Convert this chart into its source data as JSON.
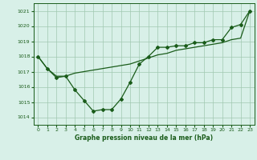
{
  "line_markers_x": [
    0,
    1,
    2,
    3,
    4,
    5,
    6,
    7,
    8,
    9,
    10,
    11,
    12,
    13,
    14,
    15,
    16,
    17,
    18,
    19,
    20,
    21,
    22,
    23
  ],
  "line_markers_y": [
    1018.0,
    1017.2,
    1016.6,
    1016.7,
    1015.8,
    1015.1,
    1014.4,
    1014.5,
    1014.5,
    1015.2,
    1016.3,
    1017.5,
    1018.0,
    1018.6,
    1018.6,
    1018.7,
    1018.7,
    1018.9,
    1018.9,
    1019.1,
    1019.1,
    1019.9,
    1020.1,
    1021.0
  ],
  "line_trend_x": [
    0,
    1,
    2,
    3,
    4,
    5,
    6,
    7,
    8,
    9,
    10,
    11,
    12,
    13,
    14,
    15,
    16,
    17,
    18,
    19,
    20,
    21,
    22,
    23
  ],
  "line_trend_y": [
    1018.0,
    1017.2,
    1016.7,
    1016.7,
    1016.9,
    1017.0,
    1017.1,
    1017.2,
    1017.3,
    1017.4,
    1017.5,
    1017.7,
    1017.9,
    1018.1,
    1018.2,
    1018.4,
    1018.5,
    1018.6,
    1018.7,
    1018.8,
    1018.9,
    1019.1,
    1019.2,
    1021.0
  ],
  "color": "#1a5c1a",
  "bg_color": "#d8f0e8",
  "grid_color": "#a0c8b0",
  "xlabel": "Graphe pression niveau de la mer (hPa)",
  "ylim": [
    1013.5,
    1021.5
  ],
  "xlim": [
    -0.5,
    23.5
  ],
  "yticks": [
    1014,
    1015,
    1016,
    1017,
    1018,
    1019,
    1020,
    1021
  ],
  "xticks": [
    0,
    1,
    2,
    3,
    4,
    5,
    6,
    7,
    8,
    9,
    10,
    11,
    12,
    13,
    14,
    15,
    16,
    17,
    18,
    19,
    20,
    21,
    22,
    23
  ]
}
